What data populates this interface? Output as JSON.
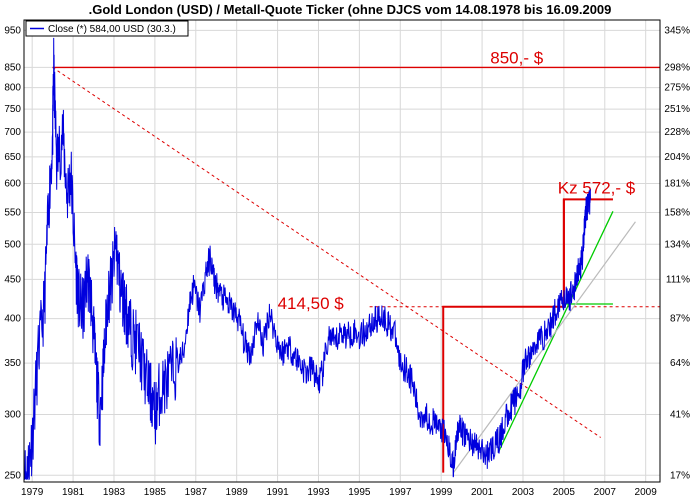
{
  "chart_data": {
    "type": "line",
    "title": ".Gold London (USD) / Metall-Quote Ticker (ohne DJCS vom 14.08.1978 bis 16.09.2009",
    "legend": {
      "label": "Close (*) 584,00 USD (30.3.)",
      "placement": "top-left"
    },
    "xlabel": "",
    "ylabel": "",
    "x_ticks": [
      "1979",
      "1981",
      "1983",
      "1985",
      "1987",
      "1989",
      "1991",
      "1993",
      "1995",
      "1997",
      "1999",
      "2001",
      "2003",
      "2005",
      "2007",
      "2009"
    ],
    "xlim": [
      1978.6,
      2009.7
    ],
    "y_scale": "log",
    "ylim": [
      245,
      980
    ],
    "y_ticks_left": [
      250,
      300,
      350,
      400,
      450,
      500,
      550,
      600,
      650,
      700,
      750,
      800,
      850,
      950
    ],
    "y_ticks_right": [
      "17%",
      "41%",
      "64%",
      "87%",
      "111%",
      "134%",
      "158%",
      "181%",
      "204%",
      "228%",
      "251%",
      "275%",
      "298%",
      "345%"
    ],
    "grid": true,
    "series": [
      {
        "name": "Close (*) 584,00 USD (30.3.)",
        "color": "#0000dd",
        "x": [
          1978.6,
          1978.8,
          1979.0,
          1979.3,
          1979.6,
          1979.8,
          1980.0,
          1980.05,
          1980.2,
          1980.5,
          1980.7,
          1980.9,
          1981.1,
          1981.3,
          1981.5,
          1981.7,
          1981.9,
          1982.1,
          1982.3,
          1982.5,
          1982.7,
          1982.9,
          1983.1,
          1983.3,
          1983.5,
          1983.7,
          1983.9,
          1984.2,
          1984.5,
          1984.8,
          1985.0,
          1985.2,
          1985.5,
          1985.8,
          1986.1,
          1986.4,
          1986.7,
          1986.9,
          1987.2,
          1987.5,
          1987.7,
          1987.9,
          1988.2,
          1988.5,
          1988.8,
          1989.1,
          1989.4,
          1989.7,
          1990.0,
          1990.3,
          1990.6,
          1990.9,
          1991.2,
          1991.5,
          1991.8,
          1992.1,
          1992.4,
          1992.7,
          1993.0,
          1993.2,
          1993.5,
          1993.8,
          1994.1,
          1994.4,
          1994.7,
          1995.0,
          1995.3,
          1995.6,
          1995.9,
          1996.1,
          1996.4,
          1996.7,
          1997.0,
          1997.3,
          1997.6,
          1997.9,
          1998.2,
          1998.5,
          1998.8,
          1999.1,
          1999.4,
          1999.6,
          1999.8,
          2000.0,
          2000.3,
          2000.6,
          2000.9,
          2001.2,
          2001.4,
          2001.7,
          2001.9,
          2002.2,
          2002.5,
          2002.8,
          2003.1,
          2003.4,
          2003.7,
          2004.0,
          2004.3,
          2004.6,
          2004.9,
          2005.2,
          2005.5,
          2005.7,
          2005.9,
          2006.0,
          2006.1,
          2006.2,
          2006.3
        ],
        "y": [
          250,
          255,
          280,
          360,
          420,
          560,
          690,
          850,
          640,
          700,
          580,
          620,
          480,
          420,
          410,
          460,
          420,
          350,
          300,
          350,
          430,
          450,
          500,
          440,
          420,
          400,
          380,
          370,
          340,
          320,
          300,
          320,
          330,
          340,
          350,
          360,
          420,
          440,
          410,
          460,
          480,
          450,
          430,
          420,
          410,
          400,
          370,
          360,
          400,
          370,
          410,
          380,
          360,
          370,
          360,
          350,
          340,
          345,
          330,
          340,
          380,
          370,
          385,
          380,
          385,
          380,
          385,
          395,
          400,
          405,
          395,
          385,
          350,
          345,
          330,
          300,
          300,
          295,
          290,
          285,
          270,
          255,
          290,
          285,
          280,
          275,
          270,
          265,
          270,
          275,
          280,
          300,
          310,
          320,
          350,
          360,
          375,
          380,
          390,
          410,
          430,
          420,
          440,
          460,
          480,
          530,
          560,
          565,
          572
        ]
      }
    ],
    "annotations": [
      {
        "text": "850,- $",
        "value": 850
      },
      {
        "text": "414,50 $",
        "value": 414.5
      },
      {
        "text": "Kz 572,- $",
        "value": 572
      }
    ],
    "colors": {
      "price_line": "#0000dd",
      "annotation": "#dd0000",
      "support_line": "#00cc00",
      "gray_line": "#bbbbbb",
      "grid": "#d8d8d8"
    }
  }
}
